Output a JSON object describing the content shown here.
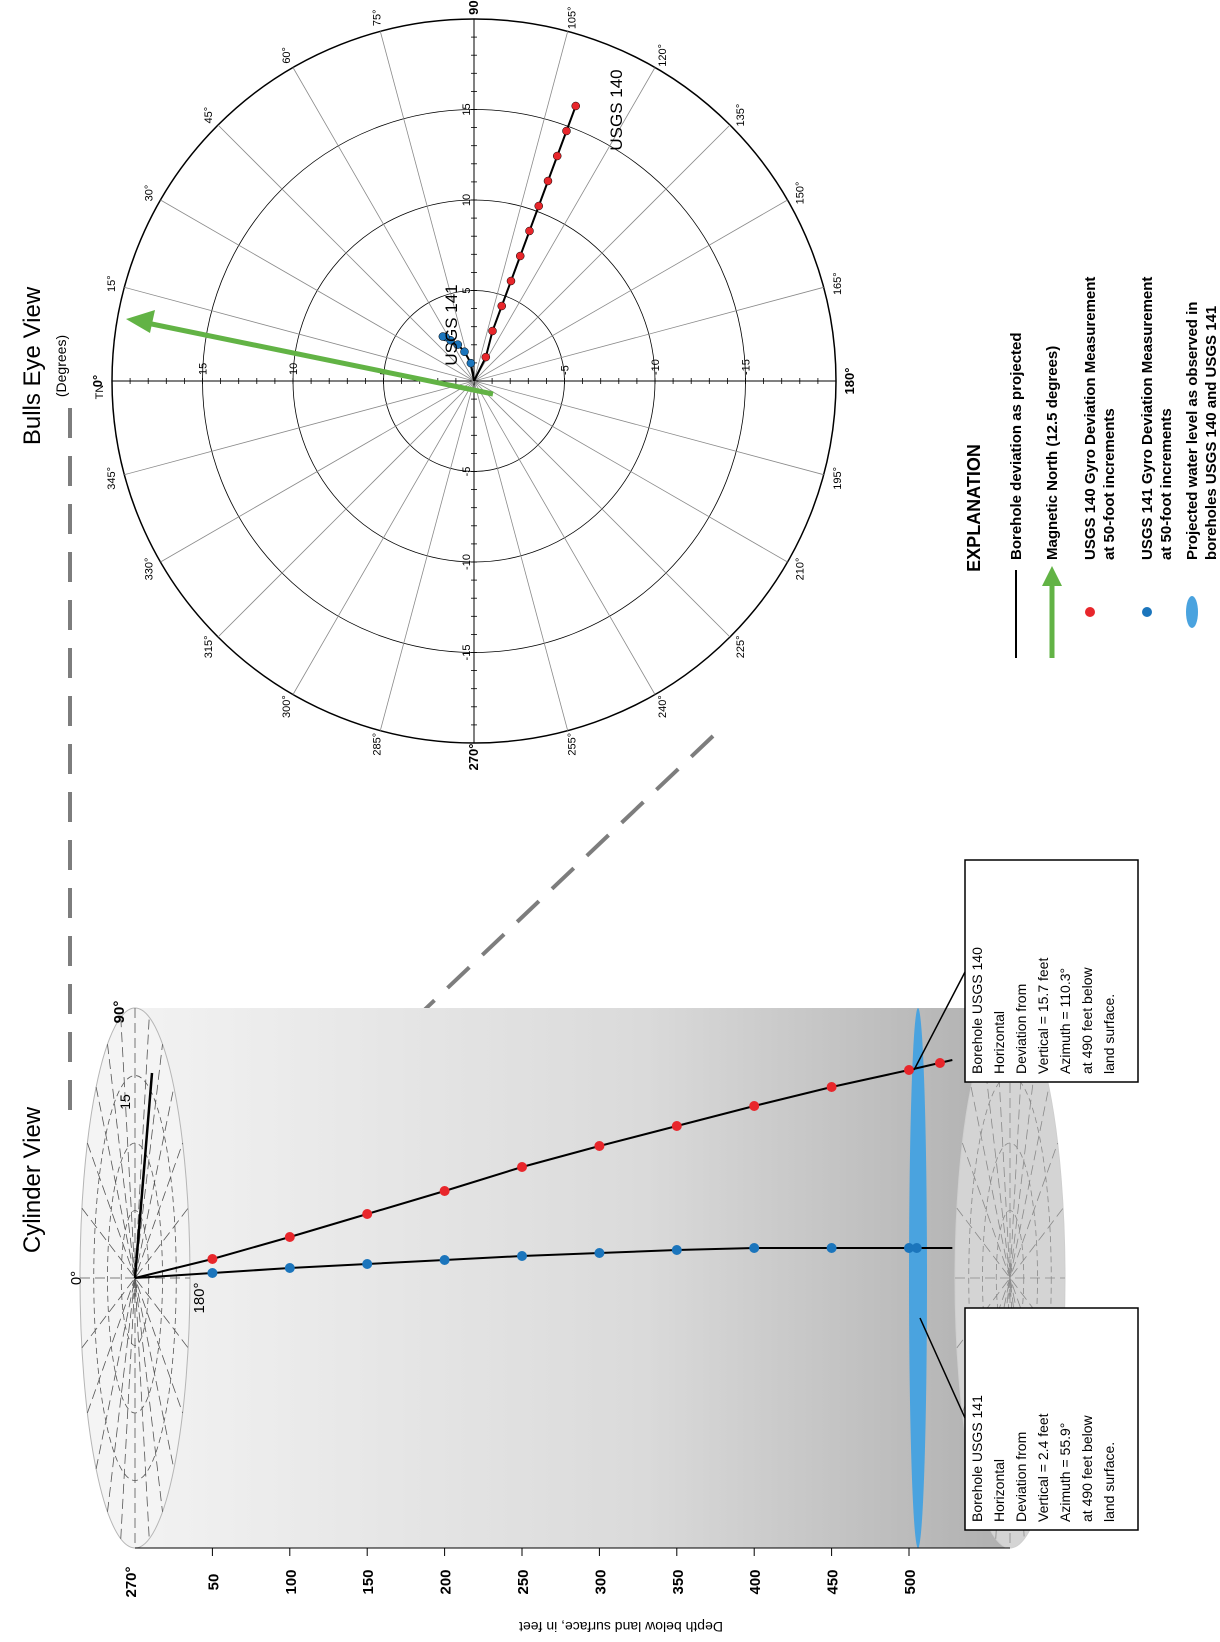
{
  "bulls_eye": {
    "title": "Bulls Eye View",
    "subtitle": "(Degrees)",
    "tn_label": "TN",
    "azimuth_labels": [
      "0°",
      "15°",
      "30°",
      "45°",
      "60°",
      "75°",
      "90°",
      "105°",
      "120°",
      "135°",
      "150°",
      "165°",
      "180°",
      "195°",
      "210°",
      "225°",
      "240°",
      "255°",
      "270°",
      "285°",
      "300°",
      "315°",
      "330°",
      "345°"
    ],
    "ring_values": [
      5,
      10,
      15
    ],
    "axis_labels": {
      "north": [
        "5",
        "10",
        "15"
      ],
      "south": [
        "-5",
        "-10",
        "-15"
      ],
      "east": [
        "5",
        "10",
        "15"
      ],
      "west": [
        "-5",
        "-10",
        "-15"
      ]
    },
    "magnetic_north_deg": 12.5,
    "usgs140_label": "USGS 140",
    "usgs141_label": "USGS 141"
  },
  "cylinder": {
    "title": "Cylinder View",
    "label_0": "0°",
    "label_90": "90°",
    "label_180": "180°",
    "label_270": "270°",
    "label_15": "15",
    "depth_axis_label": "Depth below land surface, in feet",
    "depth_ticks": [
      "50",
      "100",
      "150",
      "200",
      "250",
      "300",
      "350",
      "400",
      "450",
      "500"
    ]
  },
  "callouts": {
    "usgs140": [
      "Borehole USGS 140",
      "Horizontal",
      "Deviation from",
      "Vertical = 15.7 feet",
      "Azimuth = 110.3°",
      "at 490 feet below",
      "land surface."
    ],
    "usgs141": [
      "Borehole USGS 141",
      "Horizontal",
      "Deviation from",
      "Vertical =  2.4 feet",
      "Azimuth = 55.9°",
      "at 490 feet below",
      "land surface."
    ]
  },
  "explanation": {
    "title": "EXPLANATION",
    "items": [
      {
        "text": [
          "Borehole deviation as projected"
        ]
      },
      {
        "text": [
          "Magnetic North (12.5 degrees)"
        ]
      },
      {
        "text": [
          "USGS 140 Gyro Deviation Measurement",
          "at 50-foot increments"
        ]
      },
      {
        "text": [
          "USGS 141 Gyro Deviation Measurement",
          "at 50-foot increments"
        ]
      },
      {
        "text": [
          "Projected water level as observed in",
          "boreholes USGS 140 and USGS 141"
        ]
      }
    ]
  },
  "colors": {
    "usgs140": "#e8262b",
    "usgs141": "#1b75bc",
    "magnetic_north": "#62b345",
    "water": "#4aa3df",
    "grid": "#9a9a9a"
  }
}
